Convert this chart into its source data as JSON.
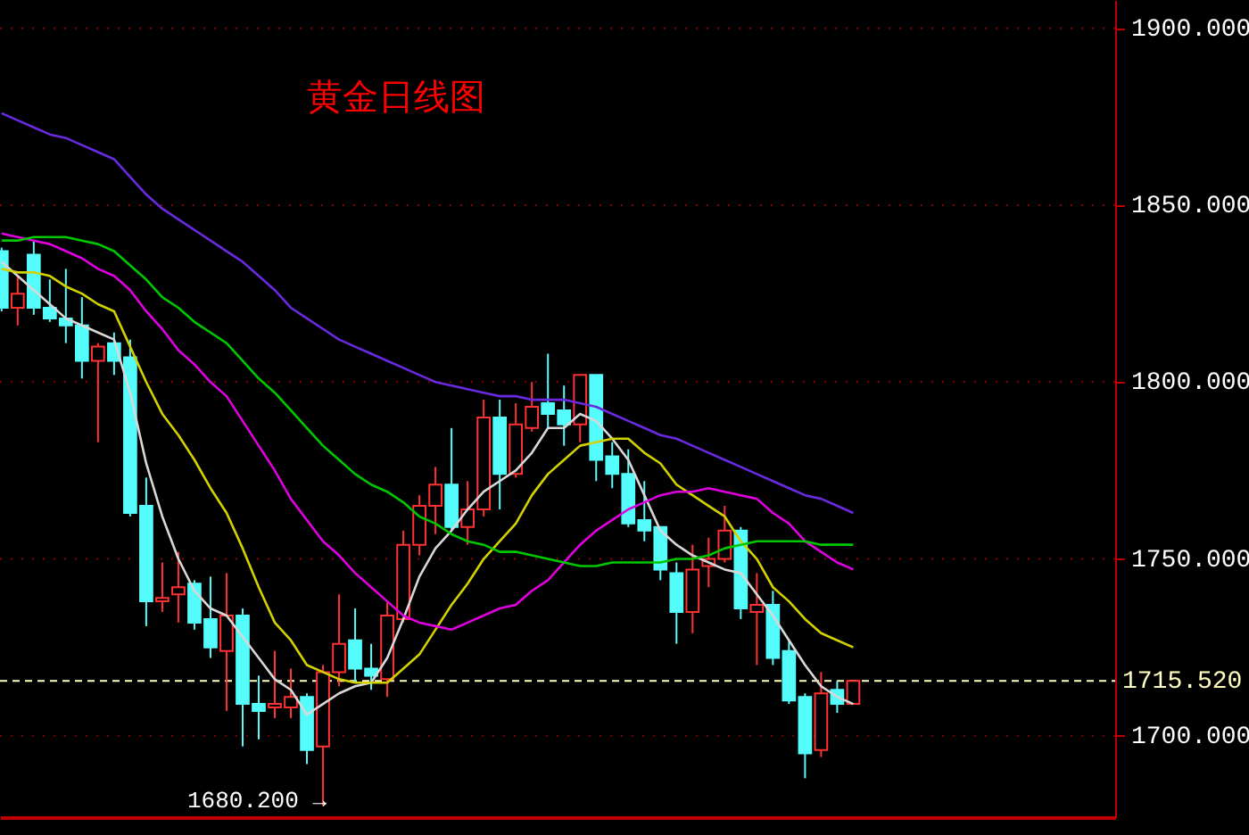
{
  "chart_data": {
    "type": "candlestick",
    "title": "黄金日线图",
    "categories": [
      null,
      null,
      null,
      null,
      null,
      null,
      null,
      null,
      null,
      null,
      null,
      null,
      null,
      null,
      null,
      null,
      null,
      null,
      null,
      null,
      null,
      null,
      null,
      null,
      null,
      null,
      null,
      null,
      null,
      null,
      null,
      null,
      null,
      null,
      null,
      null,
      null,
      null,
      null,
      null,
      null,
      null,
      null,
      null,
      null,
      null,
      null,
      null,
      null,
      null,
      null,
      null,
      null,
      null
    ],
    "ohlc": [
      [
        1837,
        1838,
        1820,
        1821
      ],
      [
        1821,
        1830,
        1816,
        1825
      ],
      [
        1836,
        1840,
        1819,
        1821
      ],
      [
        1821,
        1829,
        1817,
        1818
      ],
      [
        1818,
        1832,
        1811,
        1816
      ],
      [
        1816,
        1824,
        1801,
        1806
      ],
      [
        1806,
        1811,
        1783,
        1810
      ],
      [
        1811,
        1814,
        1802,
        1806
      ],
      [
        1807,
        1812,
        1762,
        1763
      ],
      [
        1765,
        1773,
        1731,
        1738
      ],
      [
        1738,
        1749,
        1735,
        1739
      ],
      [
        1740,
        1752,
        1732,
        1742
      ],
      [
        1743,
        1744,
        1730,
        1732
      ],
      [
        1733,
        1745,
        1722,
        1725
      ],
      [
        1724,
        1746,
        1707,
        1734
      ],
      [
        1734,
        1736,
        1697,
        1709
      ],
      [
        1709,
        1717,
        1699,
        1707
      ],
      [
        1708,
        1724,
        1705,
        1709
      ],
      [
        1708,
        1719,
        1705,
        1711
      ],
      [
        1711,
        1712,
        1692,
        1696
      ],
      [
        1697,
        1720,
        1680.2,
        1718
      ],
      [
        1718,
        1740,
        1714,
        1726
      ],
      [
        1727,
        1736,
        1715,
        1719
      ],
      [
        1719,
        1726,
        1713,
        1717
      ],
      [
        1716,
        1738,
        1711,
        1734
      ],
      [
        1733,
        1758,
        1732,
        1754
      ],
      [
        1754,
        1768,
        1751,
        1765
      ],
      [
        1765,
        1776,
        1757,
        1771
      ],
      [
        1771,
        1787,
        1758,
        1759
      ],
      [
        1759,
        1772,
        1754,
        1764
      ],
      [
        1764,
        1795,
        1762,
        1790
      ],
      [
        1790,
        1795,
        1764,
        1774
      ],
      [
        1774,
        1794,
        1773,
        1788
      ],
      [
        1787,
        1800,
        1786,
        1793
      ],
      [
        1794,
        1808,
        1787,
        1791
      ],
      [
        1792,
        1799,
        1782,
        1788
      ],
      [
        1788,
        1802,
        1783,
        1802
      ],
      [
        1802,
        1802,
        1772,
        1778
      ],
      [
        1779,
        1783,
        1770,
        1774
      ],
      [
        1774,
        1781,
        1759,
        1760
      ],
      [
        1761,
        1772,
        1755,
        1758
      ],
      [
        1759,
        1759,
        1744,
        1747
      ],
      [
        1746,
        1749,
        1726,
        1735
      ],
      [
        1735,
        1754,
        1729,
        1747
      ],
      [
        1748,
        1756,
        1742,
        1750
      ],
      [
        1750,
        1765,
        1749,
        1758
      ],
      [
        1758,
        1759,
        1733,
        1736
      ],
      [
        1735,
        1746,
        1720,
        1737
      ],
      [
        1737,
        1741,
        1720,
        1722
      ],
      [
        1724,
        1727,
        1709,
        1710
      ],
      [
        1711,
        1712,
        1688,
        1695
      ],
      [
        1696,
        1718,
        1694,
        1712
      ],
      [
        1713,
        1715.5,
        1706.5,
        1709
      ],
      [
        1709,
        1715.52,
        1709,
        1715.52
      ]
    ],
    "colors": [
      "#54fcfc",
      "#ff3232",
      "#54fcfc",
      "#54fcfc",
      "#54fcfc",
      "#54fcfc",
      "#ff3232",
      "#54fcfc",
      "#54fcfc",
      "#54fcfc",
      "#ff3232",
      "#ff3232",
      "#54fcfc",
      "#54fcfc",
      "#ff3232",
      "#54fcfc",
      "#54fcfc",
      "#ff3232",
      "#ff3232",
      "#54fcfc",
      "#ff3232",
      "#ff3232",
      "#54fcfc",
      "#54fcfc",
      "#ff3232",
      "#ff3232",
      "#ff3232",
      "#ff3232",
      "#54fcfc",
      "#ff3232",
      "#ff3232",
      "#54fcfc",
      "#ff3232",
      "#ff3232",
      "#54fcfc",
      "#54fcfc",
      "#ff3232",
      "#54fcfc",
      "#54fcfc",
      "#54fcfc",
      "#54fcfc",
      "#54fcfc",
      "#54fcfc",
      "#ff3232",
      "#ff3232",
      "#ff3232",
      "#54fcfc",
      "#ff3232",
      "#54fcfc",
      "#54fcfc",
      "#54fcfc",
      "#ff3232",
      "#54fcfc",
      "#ff3232"
    ],
    "series": [
      {
        "type": "line",
        "color": "#d8d8d8",
        "values": [
          1834,
          1830,
          1826,
          1822,
          1818,
          1816,
          1814,
          1812,
          1797,
          1777,
          1762,
          1750,
          1741,
          1736,
          1734,
          1728,
          1722,
          1716,
          1713,
          1706,
          1709,
          1712,
          1714,
          1715,
          1722,
          1733,
          1745,
          1753,
          1758,
          1764,
          1769,
          1772,
          1775,
          1780,
          1787,
          1787,
          1791,
          1789,
          1784,
          1778,
          1768,
          1758,
          1754,
          1751,
          1749,
          1747,
          1746,
          1740,
          1734,
          1727,
          1720,
          1714,
          1711,
          1709
        ]
      },
      {
        "type": "line",
        "color": "#d2d200",
        "values": [
          1832,
          1831,
          1831,
          1830,
          1827,
          1825,
          1822,
          1820,
          1810,
          1800,
          1791,
          1785,
          1778,
          1770,
          1763,
          1753,
          1742,
          1732,
          1727,
          1720,
          1718,
          1716,
          1715,
          1715,
          1715,
          1719,
          1723,
          1730,
          1737,
          1743,
          1750,
          1755,
          1760,
          1768,
          1774,
          1778,
          1782,
          1783,
          1784,
          1784,
          1780,
          1777,
          1771,
          1768,
          1765,
          1762,
          1755,
          1750,
          1742,
          1738,
          1733,
          1729,
          1727,
          1725
        ]
      },
      {
        "type": "line",
        "color": "#e000e0",
        "values": [
          1842,
          1841,
          1840,
          1839,
          1837,
          1835,
          1832,
          1830,
          1826,
          1820,
          1815,
          1809,
          1805,
          1800,
          1796,
          1789,
          1782,
          1775,
          1767,
          1761,
          1755,
          1751,
          1746,
          1742,
          1738,
          1734,
          1732,
          1731,
          1730,
          1732,
          1734,
          1736,
          1737,
          1741,
          1744,
          1749,
          1754,
          1758,
          1761,
          1764,
          1766,
          1768,
          1769,
          1769,
          1770,
          1769,
          1768,
          1767,
          1763,
          1760,
          1755,
          1752,
          1749,
          1747
        ]
      },
      {
        "type": "line",
        "color": "#00c800",
        "values": [
          1840,
          1840,
          1841,
          1841,
          1841,
          1840,
          1839,
          1837,
          1833,
          1829,
          1824,
          1821,
          1817,
          1814,
          1811,
          1806,
          1801,
          1797,
          1792,
          1787,
          1782,
          1778,
          1774,
          1771,
          1769,
          1766,
          1762,
          1760,
          1757,
          1755,
          1754,
          1752,
          1752,
          1751,
          1750,
          1749,
          1748,
          1748,
          1749,
          1749,
          1749,
          1749,
          1750,
          1750,
          1751,
          1753,
          1754,
          1755,
          1755,
          1755,
          1755,
          1754,
          1754,
          1754
        ]
      },
      {
        "type": "line",
        "color": "#6a2be0",
        "values": [
          1876,
          1874,
          1872,
          1870,
          1869,
          1867,
          1865,
          1863,
          1858,
          1853,
          1849,
          1846,
          1843,
          1840,
          1837,
          1834,
          1830,
          1826,
          1821,
          1818,
          1815,
          1812,
          1810,
          1808,
          1806,
          1804,
          1802,
          1800,
          1799,
          1798,
          1797,
          1796,
          1796,
          1795,
          1795,
          1795,
          1794,
          1793,
          1791,
          1789,
          1787,
          1785,
          1784,
          1782,
          1780,
          1778,
          1776,
          1774,
          1772,
          1770,
          1768,
          1767,
          1765,
          1763
        ]
      }
    ],
    "ylim": [
      1677,
      1908
    ],
    "yticks": [
      {
        "value": 1700,
        "label": "1700.000"
      },
      {
        "value": 1750,
        "label": "1750.000"
      },
      {
        "value": 1800,
        "label": "1800.000"
      },
      {
        "value": 1850,
        "label": "1850.000"
      },
      {
        "value": 1900,
        "label": "1900.000"
      }
    ],
    "grid": "y",
    "tick_labels": "y",
    "ref_lines": [
      {
        "axis": "y",
        "value": 1715.52,
        "label": "1715.520",
        "color": "#ffffc0",
        "line_style": "dashed"
      }
    ],
    "annotations": [
      "1680.200 →"
    ]
  }
}
